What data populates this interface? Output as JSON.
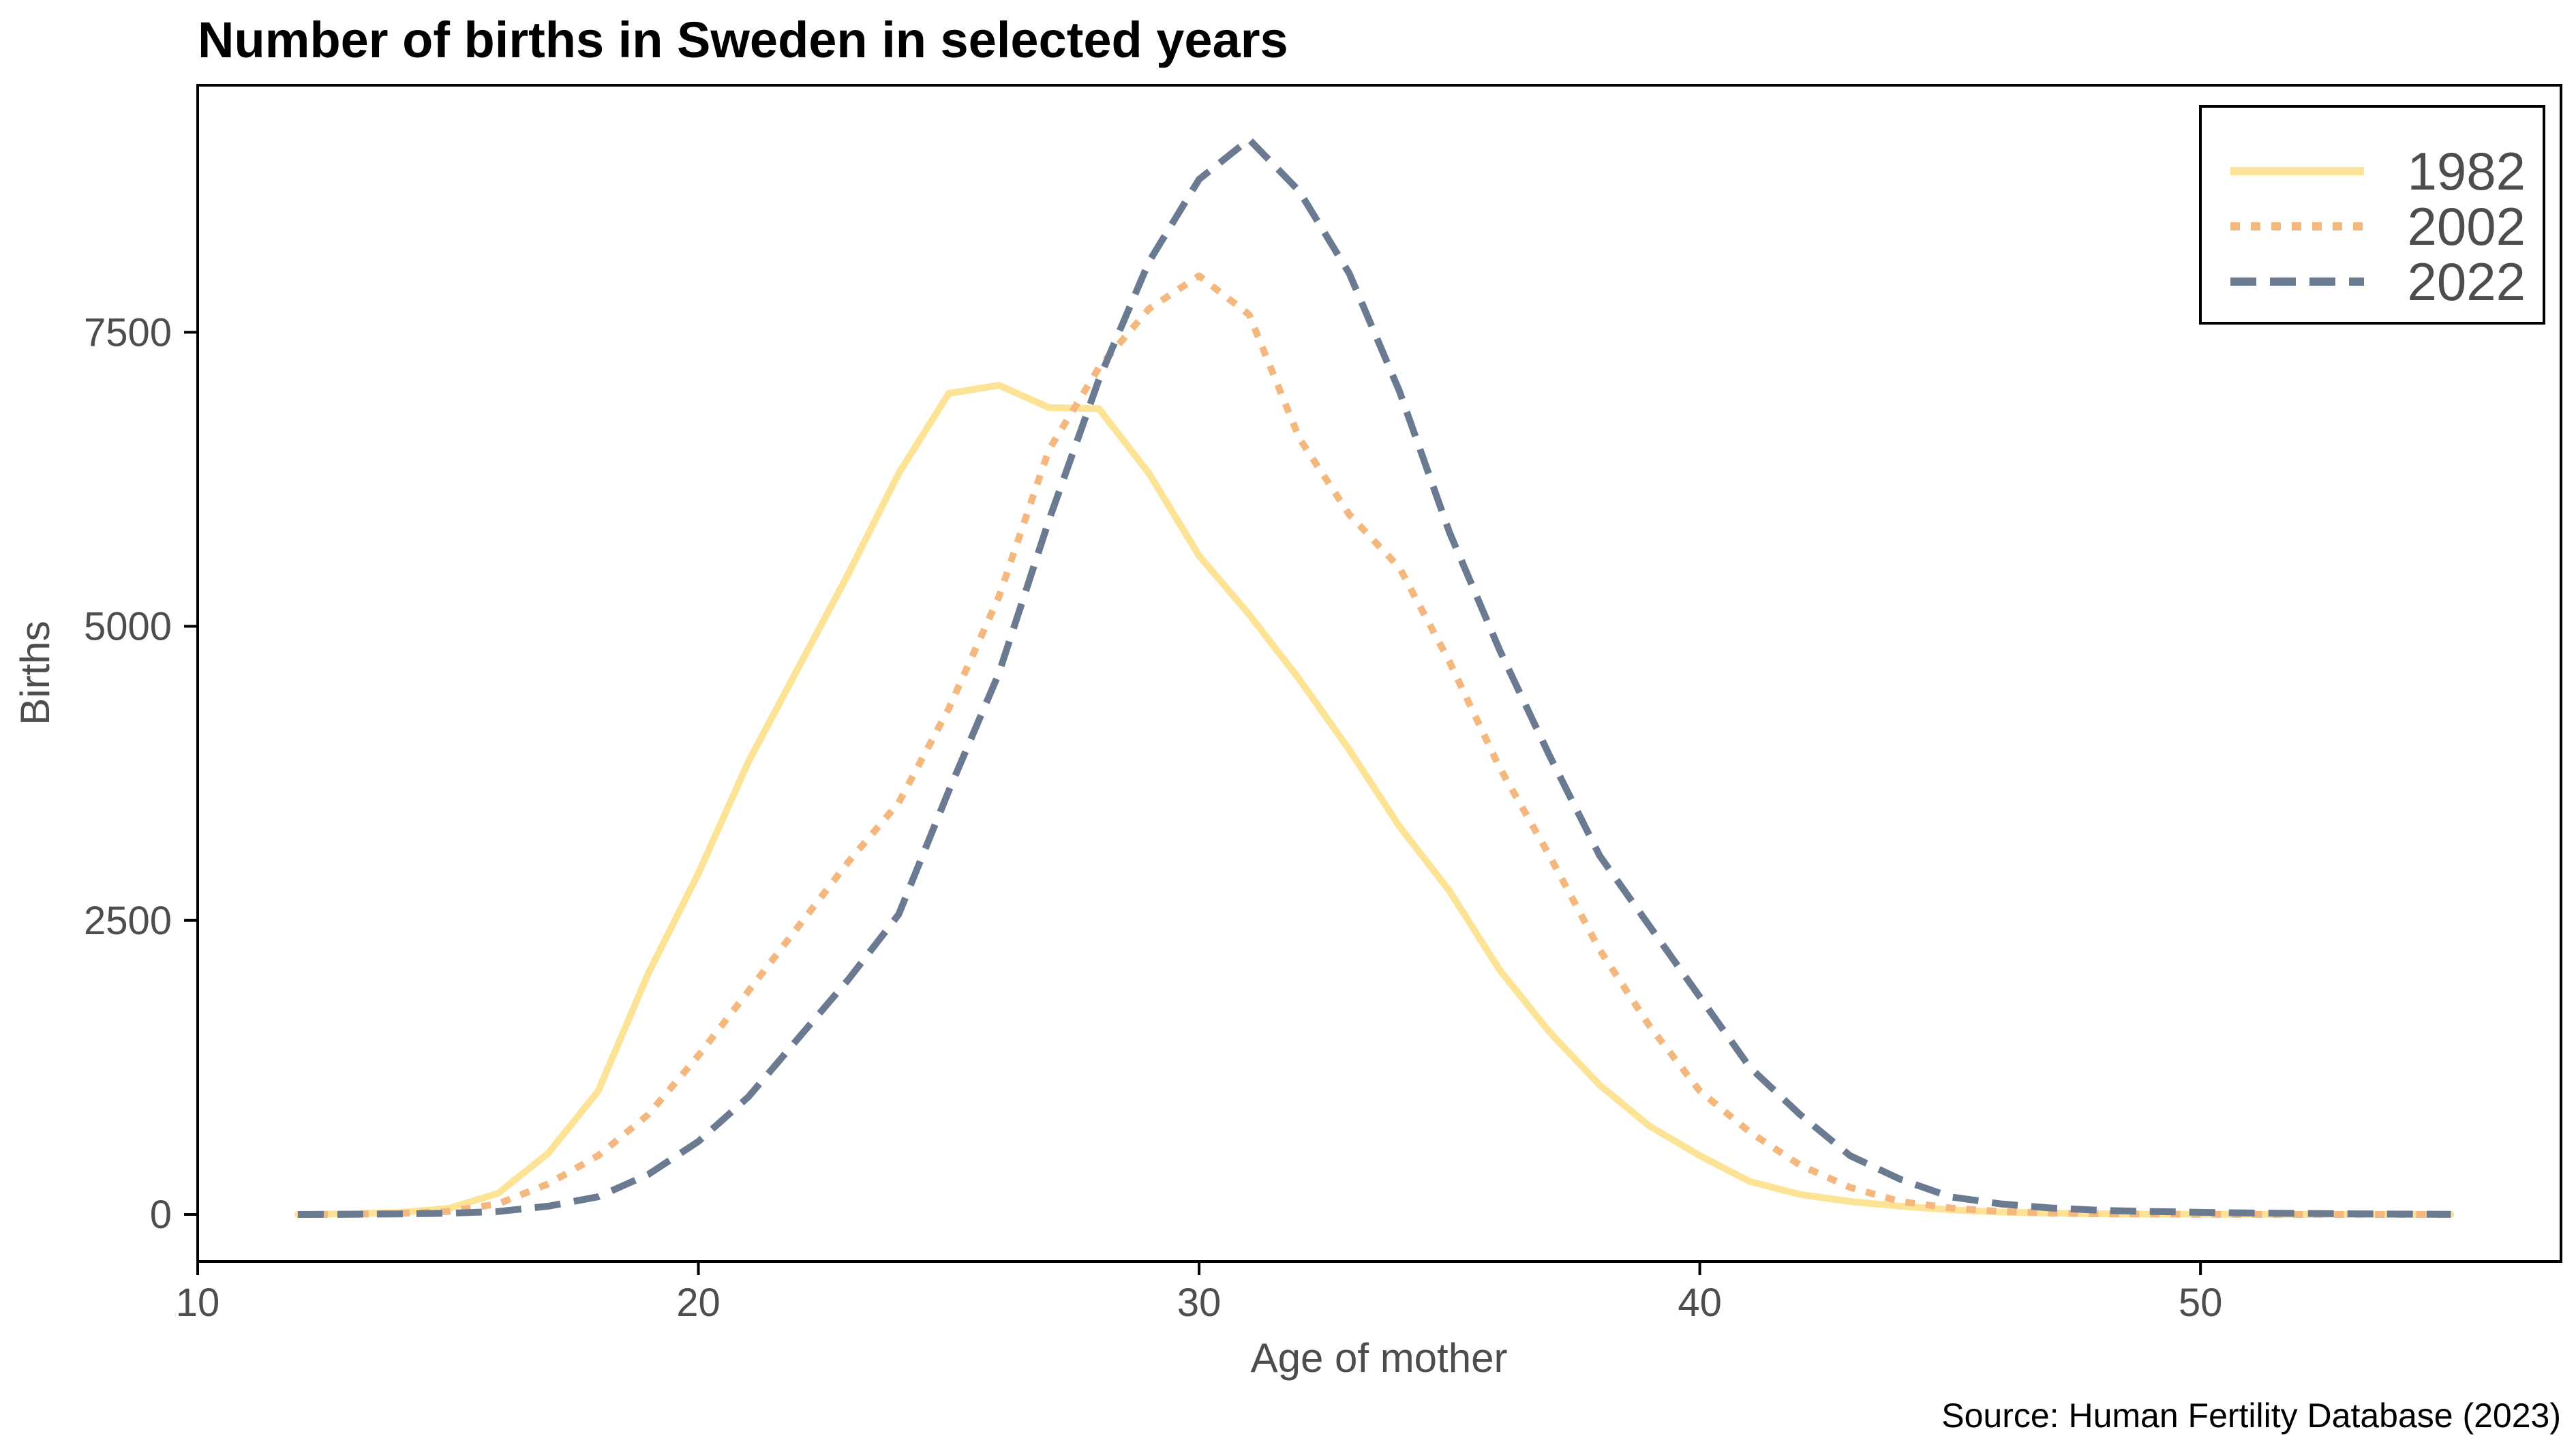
{
  "chart_data": {
    "type": "line",
    "title": "Number of births in Sweden in selected years",
    "xlabel": "Age of mother",
    "ylabel": "Births",
    "caption": "Source: Human Fertility Database (2023)",
    "xlim": [
      10,
      57.2
    ],
    "ylim": [
      -400,
      9600
    ],
    "xticks": [
      10,
      20,
      30,
      40,
      50
    ],
    "yticks": [
      0,
      2500,
      5000,
      7500
    ],
    "grid": false,
    "legend_position": "top-right",
    "x": [
      12,
      13,
      14,
      15,
      16,
      17,
      18,
      19,
      20,
      21,
      22,
      23,
      24,
      25,
      26,
      27,
      28,
      29,
      30,
      31,
      32,
      33,
      34,
      35,
      36,
      37,
      38,
      39,
      40,
      41,
      42,
      43,
      44,
      45,
      46,
      47,
      48,
      49,
      50,
      51,
      52,
      53,
      54,
      55
    ],
    "series": [
      {
        "name": "1982",
        "color": "#fde395",
        "dash": "solid",
        "values": [
          0,
          5,
          15,
          50,
          180,
          520,
          1050,
          2050,
          2900,
          3850,
          4650,
          5450,
          6300,
          6980,
          7050,
          6860,
          6850,
          6300,
          5600,
          5100,
          4550,
          3950,
          3300,
          2750,
          2080,
          1550,
          1100,
          750,
          500,
          280,
          170,
          110,
          70,
          40,
          20,
          10,
          5,
          3,
          2,
          1,
          0,
          0,
          0,
          0
        ]
      },
      {
        "name": "2002",
        "color": "#f4b77e",
        "dash": "dotted",
        "values": [
          0,
          2,
          8,
          25,
          90,
          260,
          500,
          850,
          1350,
          1900,
          2450,
          3000,
          3500,
          4300,
          5250,
          6500,
          7200,
          7700,
          7980,
          7650,
          6600,
          5950,
          5500,
          4700,
          3800,
          3050,
          2250,
          1600,
          1050,
          700,
          420,
          230,
          110,
          55,
          25,
          12,
          6,
          3,
          2,
          1,
          0,
          0,
          0,
          0
        ]
      },
      {
        "name": "2022",
        "color": "#6a7a90",
        "dash": "dashed",
        "values": [
          0,
          1,
          4,
          10,
          25,
          70,
          150,
          340,
          620,
          1000,
          1500,
          2000,
          2550,
          3600,
          4600,
          5900,
          7100,
          8100,
          8800,
          9140,
          8700,
          8000,
          7000,
          5800,
          4800,
          3900,
          3050,
          2450,
          1850,
          1250,
          850,
          500,
          300,
          150,
          90,
          55,
          35,
          25,
          18,
          12,
          8,
          5,
          3,
          2
        ]
      }
    ]
  }
}
